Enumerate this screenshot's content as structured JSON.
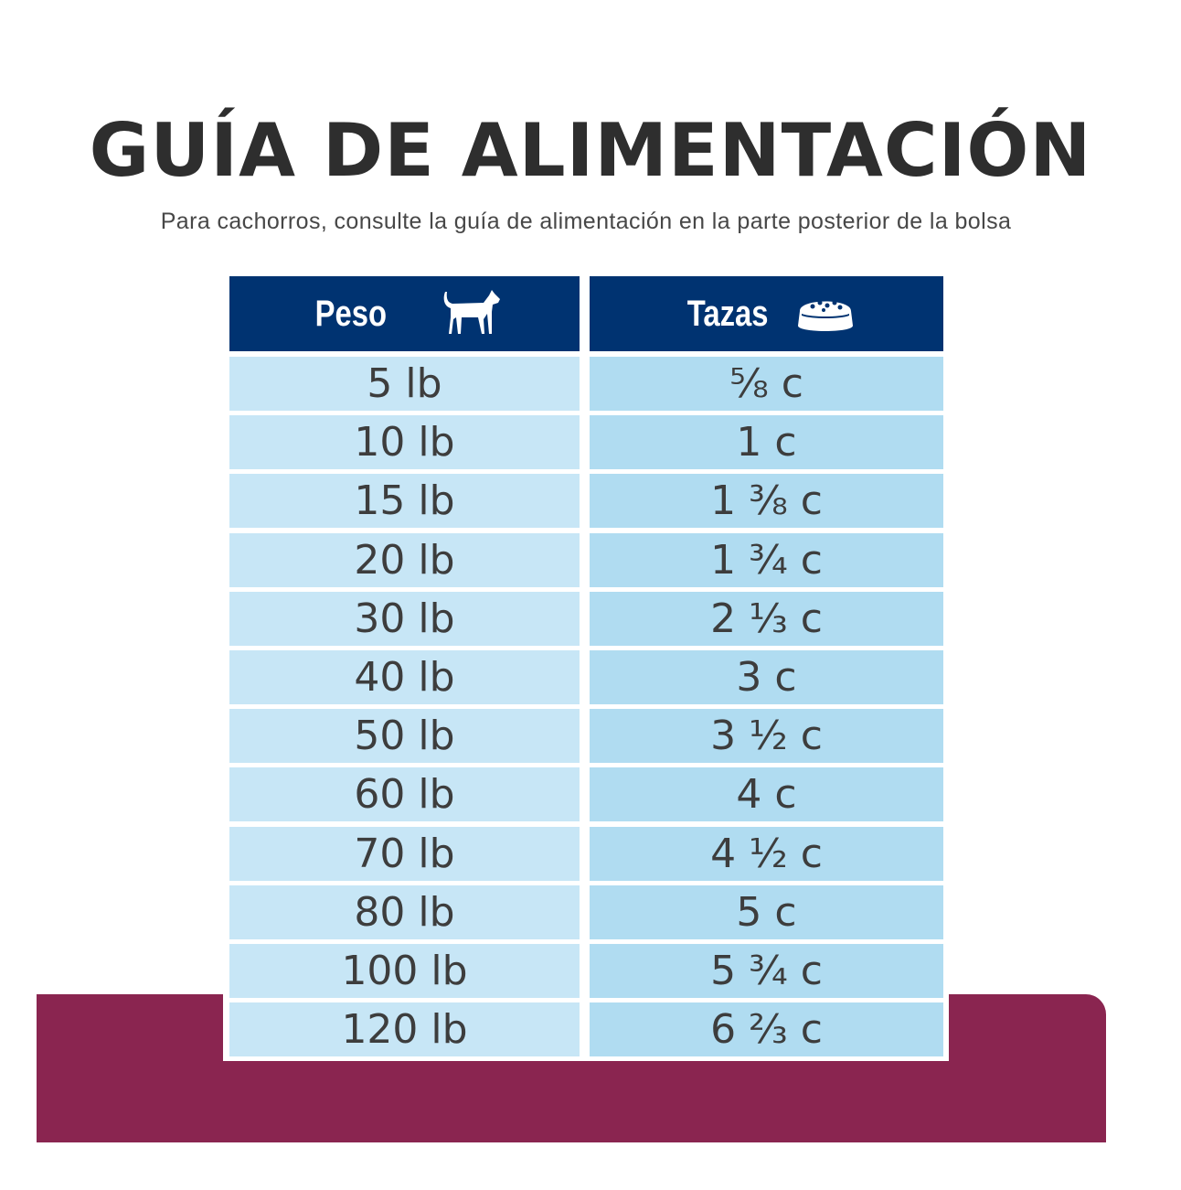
{
  "title": "GUÍA DE ALIMENTACIÓN",
  "subtitle": "Para cachorros, consulte la guía de alimentación en la parte posterior de la bolsa",
  "colors": {
    "header": "#003371",
    "weight_cell": "#c7e6f6",
    "cups_cell": "#b0dcf1",
    "band": "#8a2550",
    "text": "#3d3d3d"
  },
  "table": {
    "headers": [
      {
        "label": "Peso",
        "icon": "dog-icon"
      },
      {
        "label": "Tazas",
        "icon": "food-bowl-icon"
      }
    ],
    "rows": [
      {
        "weight": "5 lb",
        "cups": "⅝ c"
      },
      {
        "weight": "10 lb",
        "cups": "1 c"
      },
      {
        "weight": "15 lb",
        "cups": "1 ⅜ c"
      },
      {
        "weight": "20 lb",
        "cups": "1 ¾ c"
      },
      {
        "weight": "30 lb",
        "cups": "2 ⅓ c"
      },
      {
        "weight": "40 lb",
        "cups": "3 c"
      },
      {
        "weight": "50 lb",
        "cups": "3 ½ c"
      },
      {
        "weight": "60 lb",
        "cups": "4 c"
      },
      {
        "weight": "70 lb",
        "cups": "4 ½ c"
      },
      {
        "weight": "80 lb",
        "cups": "5 c"
      },
      {
        "weight": "100 lb",
        "cups": "5 ¾ c"
      },
      {
        "weight": "120 lb",
        "cups": "6 ⅔ c"
      }
    ]
  }
}
